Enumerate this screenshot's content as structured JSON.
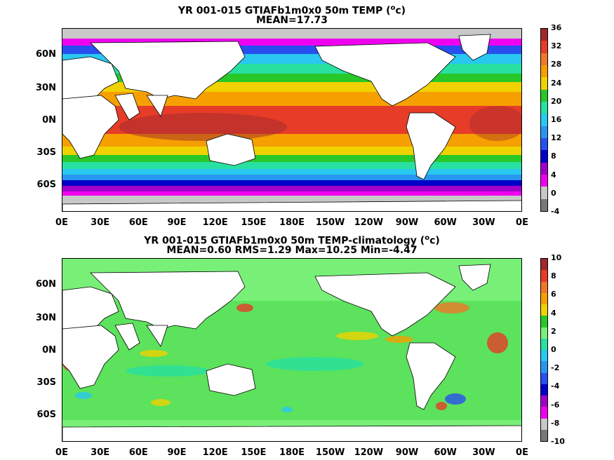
{
  "top": {
    "title_line1_prefix": "YR 001-015 GTIAFb1m0x0 50m TEMP (",
    "title_sup": "o",
    "title_line1_suffix": "c)",
    "title_line2": "MEAN=17.73",
    "lat_labels": [
      "60N",
      "30N",
      "0N",
      "30S",
      "60S"
    ],
    "lon_labels": [
      "0E",
      "30E",
      "60E",
      "90E",
      "120E",
      "150E",
      "180E",
      "150W",
      "120W",
      "90W",
      "60W",
      "30W",
      "0E"
    ],
    "colorbar_labels": [
      "36",
      "32",
      "28",
      "24",
      "20",
      "16",
      "12",
      "8",
      "4",
      "0",
      "-4"
    ],
    "colorbar_colors": [
      "#a0282d",
      "#e63c28",
      "#f07828",
      "#f5a000",
      "#f0d200",
      "#28c828",
      "#28e0a0",
      "#28c8f0",
      "#2896f0",
      "#2850f0",
      "#0000c8",
      "#a000c8",
      "#f000f0",
      "#c8c8c8",
      "#787878"
    ]
  },
  "bottom": {
    "title_line1_prefix": "YR 001-015 GTIAFb1m0x0 50m TEMP-climatology (",
    "title_sup": "o",
    "title_line1_suffix": "c)",
    "title_line2": "MEAN=0.60   RMS=1.29   Max=10.25   Min=-4.47",
    "lat_labels": [
      "60N",
      "30N",
      "0N",
      "30S",
      "60S"
    ],
    "lon_labels": [
      "0E",
      "30E",
      "60E",
      "90E",
      "120E",
      "150E",
      "180E",
      "150W",
      "120W",
      "90W",
      "60W",
      "30W",
      "0E"
    ],
    "colorbar_labels": [
      "10",
      "8",
      "6",
      "4",
      "2",
      "0",
      "-2",
      "-4",
      "-6",
      "-8",
      "-10"
    ],
    "colorbar_colors": [
      "#a0282d",
      "#e63c28",
      "#f07828",
      "#f5a000",
      "#f0d200",
      "#28c828",
      "#78f078",
      "#28e0a0",
      "#28c8f0",
      "#2896f0",
      "#2850f0",
      "#0000c8",
      "#a000c8",
      "#f000f0",
      "#c8c8c8",
      "#787878"
    ]
  }
}
